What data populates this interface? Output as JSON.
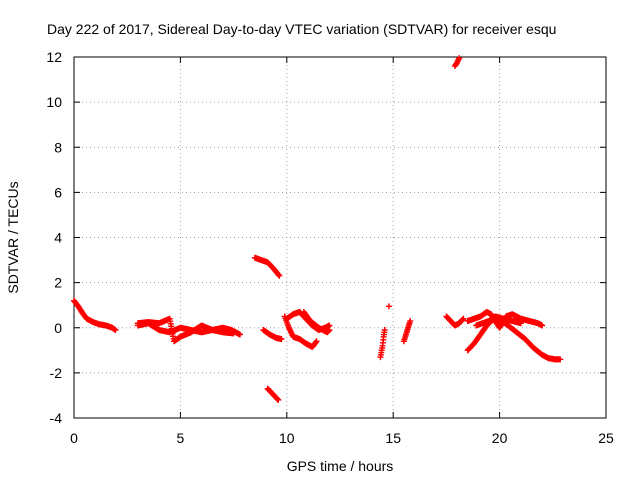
{
  "chart_data": {
    "type": "scatter",
    "title": "Day 222 of 2017, Sidereal Day-to-day VTEC variation (SDTVAR) for receiver esqu",
    "xlabel": "GPS time / hours",
    "ylabel": "SDTVAR / TECUs",
    "xlim": [
      0,
      25
    ],
    "ylim": [
      -4,
      12
    ],
    "xticks": [
      0,
      5,
      10,
      15,
      20,
      25
    ],
    "yticks": [
      -4,
      -2,
      0,
      2,
      4,
      6,
      8,
      10,
      12
    ],
    "xtick_labels": [
      "0",
      "5",
      "10",
      "15",
      "20",
      "25"
    ],
    "ytick_labels": [
      "-4",
      "-2",
      "0",
      "2",
      "4",
      "6",
      "8",
      "10",
      "12"
    ],
    "grid": true,
    "marker": "plus",
    "color": "#ff0000",
    "segments": [
      {
        "x": [
          0.0,
          0.2,
          0.4,
          0.6,
          0.9,
          1.2,
          1.5,
          1.8,
          1.95
        ],
        "y": [
          1.2,
          0.95,
          0.65,
          0.4,
          0.25,
          0.15,
          0.1,
          0.0,
          -0.1
        ]
      },
      {
        "x": [
          3.0,
          3.5,
          4.0,
          4.5,
          4.7,
          5.0,
          5.5,
          6.0,
          6.5,
          7.0,
          7.4,
          7.8
        ],
        "y": [
          0.2,
          0.25,
          0.2,
          0.4,
          -0.6,
          -0.4,
          -0.2,
          0.1,
          -0.1,
          0.0,
          -0.1,
          -0.3
        ]
      },
      {
        "x": [
          3.0,
          3.5,
          4.0,
          4.5,
          5.0,
          5.5,
          6.0,
          6.5,
          7.0,
          7.5
        ],
        "y": [
          0.1,
          0.2,
          -0.1,
          -0.2,
          0.0,
          -0.1,
          -0.2,
          -0.1,
          -0.2,
          -0.25
        ]
      },
      {
        "x": [
          8.5,
          8.8,
          9.1,
          9.4,
          9.65
        ],
        "y": [
          3.1,
          3.0,
          2.9,
          2.6,
          2.3
        ]
      },
      {
        "x": [
          8.9,
          9.2,
          9.5,
          9.75
        ],
        "y": [
          -0.1,
          -0.3,
          -0.45,
          -0.5
        ]
      },
      {
        "x": [
          9.1,
          9.3,
          9.5,
          9.6
        ],
        "y": [
          -2.7,
          -2.9,
          -3.1,
          -3.2
        ]
      },
      {
        "x": [
          9.9,
          10.1,
          10.3,
          10.6,
          10.9,
          11.2,
          11.4
        ],
        "y": [
          0.5,
          0.0,
          -0.4,
          -0.5,
          -0.7,
          -0.85,
          -0.6
        ]
      },
      {
        "x": [
          10.0,
          10.3,
          10.6,
          10.9,
          11.2,
          11.5,
          11.8,
          12.0
        ],
        "y": [
          0.4,
          0.6,
          0.7,
          0.4,
          0.1,
          -0.1,
          0.0,
          0.1
        ]
      },
      {
        "x": [
          10.8,
          11.1,
          11.5,
          11.9,
          12.0
        ],
        "y": [
          0.7,
          0.3,
          0.0,
          -0.2,
          -0.1
        ]
      },
      {
        "x": [
          14.4,
          14.5,
          14.55,
          14.6
        ],
        "y": [
          -1.3,
          -0.8,
          -0.4,
          -0.1
        ]
      },
      {
        "x": [
          14.8
        ],
        "y": [
          0.95
        ]
      },
      {
        "x": [
          15.5,
          15.6,
          15.7,
          15.8
        ],
        "y": [
          -0.6,
          -0.3,
          0.0,
          0.3
        ]
      },
      {
        "x": [
          17.5,
          17.7,
          17.9,
          18.1,
          18.3
        ],
        "y": [
          0.5,
          0.3,
          0.1,
          0.2,
          0.4
        ]
      },
      {
        "x": [
          17.9,
          18.0,
          18.1
        ],
        "y": [
          11.6,
          11.75,
          11.95
        ]
      },
      {
        "x": [
          18.5,
          18.8,
          19.1,
          19.4,
          19.6,
          19.8,
          20.0,
          20.3,
          20.6,
          21.0,
          21.4,
          21.8,
          22.0
        ],
        "y": [
          0.3,
          0.4,
          0.5,
          0.7,
          0.6,
          0.3,
          0.0,
          0.5,
          0.6,
          0.4,
          0.3,
          0.2,
          0.1
        ]
      },
      {
        "x": [
          18.5,
          18.8,
          19.1,
          19.4,
          19.6,
          19.8,
          20.1,
          20.4,
          20.8,
          21.2,
          21.6,
          22.0,
          22.3,
          22.6,
          22.85
        ],
        "y": [
          -1.0,
          -0.7,
          -0.3,
          0.1,
          0.3,
          0.4,
          0.3,
          0.1,
          -0.2,
          -0.5,
          -0.9,
          -1.2,
          -1.35,
          -1.4,
          -1.4
        ]
      },
      {
        "x": [
          18.9,
          19.2,
          19.5,
          19.8,
          20.2,
          20.6,
          21.0
        ],
        "y": [
          0.1,
          0.2,
          0.3,
          0.5,
          0.4,
          0.3,
          0.2
        ]
      }
    ]
  }
}
